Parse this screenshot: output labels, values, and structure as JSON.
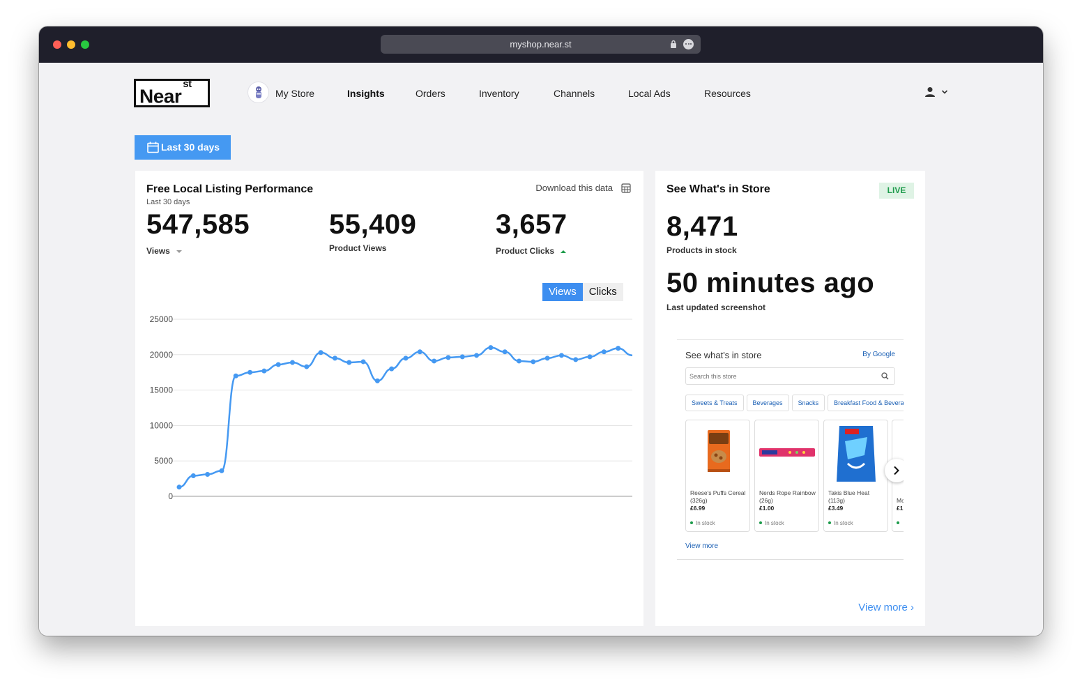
{
  "browser": {
    "url": "myshop.near.st"
  },
  "nav": {
    "logo_main": "Near",
    "logo_sup": "st",
    "items": [
      {
        "label": "My Store"
      },
      {
        "label": "Insights"
      },
      {
        "label": "Orders"
      },
      {
        "label": "Inventory"
      },
      {
        "label": "Channels"
      },
      {
        "label": "Local Ads"
      },
      {
        "label": "Resources"
      }
    ],
    "active": "Insights"
  },
  "date_filter": {
    "label": "Last 30 days"
  },
  "listing_card": {
    "title": "Free Local Listing Performance",
    "subtitle": "Last 30 days",
    "download_label": "Download this data",
    "stats": [
      {
        "value": "547,585",
        "label": "Views",
        "trend": "down"
      },
      {
        "value": "55,409",
        "label": "Product Views",
        "trend": ""
      },
      {
        "value": "3,657",
        "label": "Product Clicks",
        "trend": "up"
      }
    ],
    "toggle": {
      "selected": "Views",
      "options": [
        "Views",
        "Clicks"
      ]
    }
  },
  "chart_data": {
    "type": "line",
    "title": "",
    "xlabel": "",
    "ylabel": "",
    "ylim": [
      0,
      25000
    ],
    "yticks": [
      0,
      5000,
      10000,
      15000,
      20000,
      25000
    ],
    "grid": true,
    "legend": "none",
    "color": "#4599f2",
    "series": [
      {
        "values": [
          1300,
          2900,
          3100,
          3600,
          17000,
          17500,
          17700,
          18600,
          18900,
          18300,
          20300,
          19500,
          18900,
          19000,
          16300,
          18000,
          19500,
          20400,
          19100,
          19600,
          19700,
          19900,
          21000,
          20400,
          19100,
          19000,
          19500,
          19900,
          19300,
          19700,
          20400,
          20900,
          19900
        ]
      }
    ]
  },
  "store_card": {
    "title": "See What's in Store",
    "badge": "LIVE",
    "products_value": "8,471",
    "products_label": "Products in stock",
    "updated_value": "50 minutes ago",
    "updated_label": "Last updated screenshot",
    "view_more": "View more ›"
  },
  "widget": {
    "title": "See what's in store",
    "by": "By Google",
    "search_placeholder": "Search this store",
    "chips": [
      "Sweets & Treats",
      "Beverages",
      "Snacks",
      "Breakfast Food & Beverages"
    ],
    "products": [
      {
        "name": "Reese's Puffs Cereal (326g)",
        "price": "£6.99",
        "stock": "In stock"
      },
      {
        "name": "Nerds Rope Rainbow (26g)",
        "price": "£1.00",
        "stock": "In stock"
      },
      {
        "name": "Takis Blue Heat (113g)",
        "price": "£3.49",
        "stock": "In stock"
      },
      {
        "name": "Mc",
        "price": "£1",
        "stock": ""
      }
    ],
    "view_more": "View more"
  },
  "colors": {
    "accent": "#4599f2",
    "live_green": "#1d9b4b",
    "titlebar": "#1f1f2b"
  }
}
